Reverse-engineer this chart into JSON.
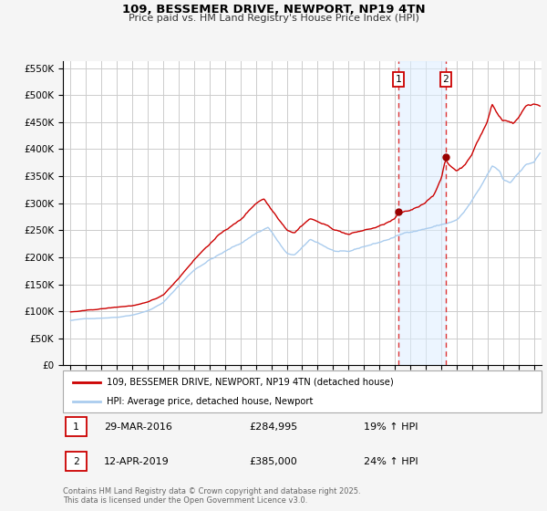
{
  "title": "109, BESSEMER DRIVE, NEWPORT, NP19 4TN",
  "subtitle": "Price paid vs. HM Land Registry's House Price Index (HPI)",
  "legend_label_red": "109, BESSEMER DRIVE, NEWPORT, NP19 4TN (detached house)",
  "legend_label_blue": "HPI: Average price, detached house, Newport",
  "footnote": "Contains HM Land Registry data © Crown copyright and database right 2025.\nThis data is licensed under the Open Government Licence v3.0.",
  "transaction1": {
    "label": "1",
    "date": "29-MAR-2016",
    "price": "£284,995",
    "hpi": "19% ↑ HPI"
  },
  "transaction2": {
    "label": "2",
    "date": "12-APR-2019",
    "price": "£385,000",
    "hpi": "24% ↑ HPI"
  },
  "vline1_year": 2016.23,
  "vline2_year": 2019.28,
  "marker1_red": [
    2016.23,
    284995
  ],
  "marker2_red": [
    2019.28,
    385000
  ],
  "ylim": [
    0,
    562500
  ],
  "yticks": [
    0,
    50000,
    100000,
    150000,
    200000,
    250000,
    300000,
    350000,
    400000,
    450000,
    500000,
    550000
  ],
  "ytick_labels": [
    "£0",
    "£50K",
    "£100K",
    "£150K",
    "£200K",
    "£250K",
    "£300K",
    "£350K",
    "£400K",
    "£450K",
    "£500K",
    "£550K"
  ],
  "xlim_start": 1994.5,
  "xlim_end": 2025.5,
  "xticks": [
    1995,
    1996,
    1997,
    1998,
    1999,
    2000,
    2001,
    2002,
    2003,
    2004,
    2005,
    2006,
    2007,
    2008,
    2009,
    2010,
    2011,
    2012,
    2013,
    2014,
    2015,
    2016,
    2017,
    2018,
    2019,
    2020,
    2021,
    2022,
    2023,
    2024,
    2025
  ],
  "bg_color": "#f5f5f5",
  "plot_bg_color": "#ffffff",
  "red_color": "#cc0000",
  "blue_color": "#aaccee",
  "blue_fill_color": "#ddeeff",
  "grid_color": "#cccccc",
  "vline_color": "#dd3333",
  "shade_color": "#ddeeff"
}
